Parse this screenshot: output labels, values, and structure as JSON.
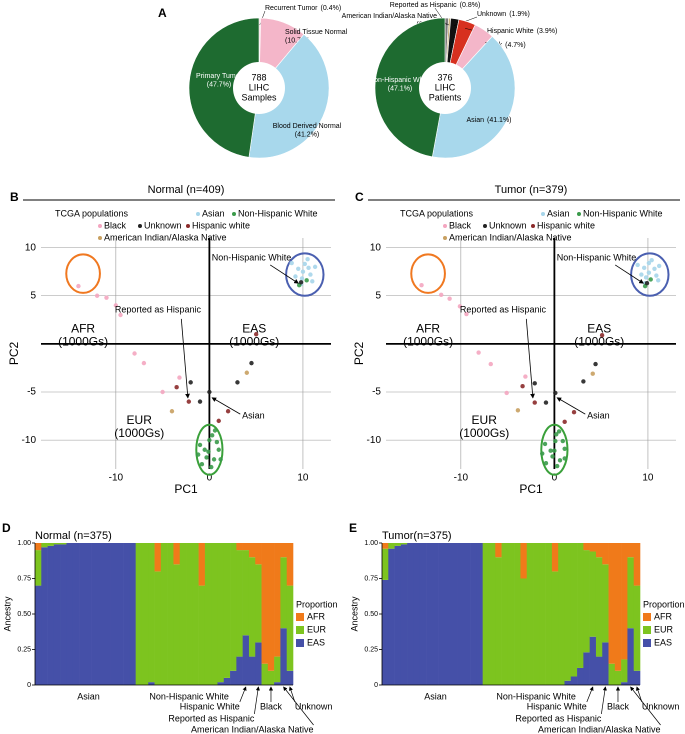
{
  "chart_data": [
    {
      "type": "pie",
      "panel": "A",
      "center_label": [
        "788",
        "LIHC",
        "Samples"
      ],
      "categories": [
        "Recurrent Tumor",
        "Solid Tissue Normal",
        "Blood Derived Normal",
        "Primary Tumor"
      ],
      "values": [
        0.4,
        10.7,
        41.2,
        47.7
      ],
      "value_labels": [
        "(0.4%)",
        "(10.7%)",
        "(41.2%)",
        "(47.7%)"
      ],
      "colors": [
        "#f7d9e0",
        "#f4b6c9",
        "#a8d8ec",
        "#1e6b30"
      ]
    },
    {
      "type": "pie",
      "center_label": [
        "376",
        "LIHC",
        "Patients"
      ],
      "categories": [
        "Reported as Hispanic",
        "American Indian/Alaska Native",
        "Unknown",
        "Hispanic White",
        "Black",
        "Asian",
        "Non-Hispanic White"
      ],
      "values": [
        0.8,
        0.5,
        1.9,
        3.9,
        4.7,
        41.1,
        47.1
      ],
      "value_labels": [
        "(0.8%)",
        "(0.5%)",
        "(1.9%)",
        "(3.9%)",
        "(4.7%)",
        "(41.1%)",
        "(47.1%)"
      ],
      "colors": [
        "#7a7a7a",
        "#c9b27c",
        "#111111",
        "#d7301f",
        "#f4b6c9",
        "#a8d8ec",
        "#1e6b30"
      ]
    },
    {
      "type": "scatter",
      "panel": "B",
      "title": "Normal (n=409)",
      "legend_title": "TCGA populations",
      "xlabel": "PC1",
      "ylabel": "PC2",
      "xlim": [
        -18,
        13
      ],
      "ylim": [
        -13,
        11
      ],
      "xticks": [
        -10,
        0,
        10
      ],
      "yticks": [
        -10,
        -5,
        5,
        10
      ],
      "grid": true,
      "series": [
        {
          "name": "Asian",
          "color": "#a6d5ea",
          "x": [
            9.5,
            10.2,
            10.8,
            11,
            9.8,
            10.5,
            9.2,
            11.3,
            10,
            8.8,
            10.6,
            9.9
          ],
          "values": [
            7.8,
            8.3,
            7.2,
            6.5,
            6.2,
            8.8,
            7,
            8,
            7.5,
            8.4,
            7.9,
            6.8
          ]
        },
        {
          "name": "Non-Hispanic White",
          "color": "#3a9a4a",
          "x": [
            0,
            -0.5,
            0.5,
            -0.8,
            0.3,
            1,
            -1,
            0.2,
            -0.3,
            0.8,
            1.2,
            -1.2,
            0.6,
            -0.1,
            9.6,
            10.4
          ],
          "values": [
            -10,
            -11,
            -12,
            -12.5,
            -9.5,
            -11,
            -10.5,
            -12.8,
            -11.8,
            -10.2,
            -12,
            -11.5,
            -9,
            -11.2,
            6.1,
            6.6
          ]
        },
        {
          "name": "Black",
          "color": "#f4a6c0",
          "x": [
            -14,
            -12,
            -11,
            -10,
            -9.5,
            -8,
            -7,
            -5,
            -3.2
          ],
          "values": [
            6,
            5,
            4.8,
            4,
            3,
            -1,
            -2,
            -5,
            -3.5
          ]
        },
        {
          "name": "Unknown",
          "color": "#222222",
          "x": [
            -2,
            0,
            3,
            4.5,
            -1,
            9.8
          ],
          "values": [
            -4,
            -5,
            -4,
            -2,
            -6,
            6.4
          ]
        },
        {
          "name": "Hispanic white",
          "color": "#8b2a2a",
          "x": [
            -2.2,
            1,
            5,
            2,
            -3.5
          ],
          "values": [
            -6,
            -8,
            1,
            -7,
            -4.5
          ]
        },
        {
          "name": "American Indian/Alaska Native",
          "color": "#c8a060",
          "x": [
            4,
            -4
          ],
          "values": [
            -3,
            -7
          ]
        }
      ],
      "clusters": [
        {
          "name": "AFR",
          "sublabel": "(1000Gs)",
          "color": "#f07820",
          "cx": -13.5,
          "cy": 7.3,
          "rx": 1.8,
          "ry": 2
        },
        {
          "name": "EAS",
          "sublabel": "(1000Gs)",
          "color": "#4a5fb0",
          "cx": 10.2,
          "cy": 7.2,
          "rx": 2,
          "ry": 2.2
        },
        {
          "name": "EUR",
          "sublabel": "(1000Gs)",
          "color": "#3aa03a",
          "cx": 0,
          "cy": -11,
          "rx": 1.4,
          "ry": 2.6
        }
      ],
      "annotations": [
        "Non-Hispanic White",
        "Reported as Hispanic",
        "Asian"
      ]
    },
    {
      "type": "scatter",
      "panel": "C",
      "title": "Tumor (n=379)",
      "legend_title": "TCGA populations",
      "xlabel": "PC1",
      "ylabel": "PC2",
      "xlim": [
        -18,
        13
      ],
      "ylim": [
        -13,
        11
      ],
      "xticks": [
        -10,
        0,
        10
      ],
      "yticks": [
        -10,
        -5,
        5,
        10
      ],
      "grid": true,
      "series": [
        {
          "name": "Asian",
          "color": "#a6d5ea",
          "x": [
            9.6,
            10.1,
            10.9,
            11.1,
            9.7,
            10.4,
            9.3,
            11.2,
            10.1,
            8.9,
            10.7,
            9.8
          ],
          "values": [
            7.9,
            8.4,
            7.1,
            6.6,
            6.3,
            8.7,
            7.2,
            8.1,
            7.4,
            8.2,
            7.8,
            6.9
          ]
        },
        {
          "name": "Non-Hispanic White",
          "color": "#3a9a4a",
          "x": [
            0.1,
            -0.4,
            0.6,
            -0.9,
            0.2,
            1.1,
            -1,
            0.3,
            -0.2,
            0.9,
            1.1,
            -1.3,
            0.5,
            0,
            9.7,
            10.3
          ],
          "values": [
            -10.1,
            -11.1,
            -12.1,
            -12.4,
            -9.4,
            -10.9,
            -10.4,
            -12.7,
            -11.7,
            -10.1,
            -11.9,
            -11.4,
            -9.1,
            -11.1,
            6,
            6.7
          ]
        },
        {
          "name": "Black",
          "color": "#f4a6c0",
          "x": [
            -14.2,
            -12.1,
            -11.2,
            -10.1,
            -9.4,
            -8.1,
            -6.8,
            -5.1,
            -3.1
          ],
          "values": [
            6.1,
            5.1,
            4.7,
            3.9,
            3.1,
            -0.9,
            -2.1,
            -5.1,
            -3.4
          ]
        },
        {
          "name": "Unknown",
          "color": "#222222",
          "x": [
            -2.1,
            0.1,
            3.1,
            4.4,
            -0.9,
            9.9
          ],
          "values": [
            -4.1,
            -5.1,
            -3.9,
            -2.1,
            -6.1,
            6.3
          ]
        },
        {
          "name": "Hispanic white",
          "color": "#8b2a2a",
          "x": [
            -2.1,
            1.1,
            5.1,
            2.1,
            -3.4
          ],
          "values": [
            -6.1,
            -8.1,
            0.9,
            -7.1,
            -4.4
          ]
        },
        {
          "name": "American Indian/Alaska Native",
          "color": "#c8a060",
          "x": [
            4.1,
            -3.9
          ],
          "values": [
            -3.1,
            -6.9
          ]
        }
      ],
      "clusters": [
        {
          "name": "AFR",
          "sublabel": "(1000Gs)",
          "color": "#f07820",
          "cx": -13.5,
          "cy": 7.3,
          "rx": 1.8,
          "ry": 2
        },
        {
          "name": "EAS",
          "sublabel": "(1000Gs)",
          "color": "#4a5fb0",
          "cx": 10.2,
          "cy": 7.2,
          "rx": 2,
          "ry": 2.2
        },
        {
          "name": "EUR",
          "sublabel": "(1000Gs)",
          "color": "#3aa03a",
          "cx": 0,
          "cy": -11,
          "rx": 1.4,
          "ry": 2.6
        }
      ],
      "annotations": [
        "Non-Hispanic White",
        "Reported as Hispanic",
        "Asian"
      ]
    },
    {
      "type": "bar",
      "stacked": true,
      "panel": "D",
      "title": "Normal (n=375)",
      "ylabel": "Ancestry",
      "legend_title": "Proportion",
      "ylim": [
        0,
        1
      ],
      "yticks": [
        0,
        0.25,
        {
          "value": 0.5,
          "label": "0.50"
        },
        0.75,
        {
          "value": 1,
          "label": "1.00"
        }
      ],
      "categories": [
        null,
        null,
        null,
        null,
        null,
        null,
        null,
        null,
        "Asian",
        null,
        null,
        null,
        null,
        null,
        null,
        null,
        null,
        null,
        null,
        null,
        null,
        null,
        null,
        null,
        "Non-Hispanic White",
        null,
        null,
        null,
        null,
        null,
        null,
        null,
        null,
        "Hispanic White",
        null,
        "Reported as Hispanic",
        null,
        "Black",
        null,
        "American Indian/Alaska Native",
        "Unknown"
      ],
      "series": [
        {
          "name": "AFR",
          "color": "#f07a1a",
          "values": [
            0.05,
            0,
            0,
            0,
            0,
            0,
            0,
            0,
            0,
            0,
            0,
            0,
            0,
            0,
            0,
            0,
            0,
            0,
            0,
            0.2,
            0,
            0,
            0.15,
            0,
            0,
            0,
            0.3,
            0,
            0,
            0,
            0,
            0,
            0.05,
            0.05,
            0.1,
            0.15,
            0.85,
            0.9,
            0.8,
            0.1,
            0.3
          ]
        },
        {
          "name": "EUR",
          "color": "#7dc41f",
          "values": [
            0.25,
            0.03,
            0.02,
            0.01,
            0.01,
            0,
            0,
            0,
            0,
            0,
            0,
            0,
            0,
            0,
            0,
            0,
            1,
            1,
            0.98,
            0.8,
            1,
            1,
            0.85,
            1,
            1,
            1,
            0.7,
            1,
            1,
            0.98,
            0.95,
            0.9,
            0.75,
            0.6,
            0.7,
            0.55,
            0.15,
            0.1,
            0.18,
            0.5,
            0.6
          ]
        },
        {
          "name": "EAS",
          "color": "#4550a8",
          "values": [
            0.7,
            0.97,
            0.98,
            0.99,
            0.99,
            1,
            1,
            1,
            1,
            1,
            1,
            1,
            1,
            1,
            1,
            1,
            0,
            0,
            0.02,
            0,
            0,
            0,
            0,
            0,
            0,
            0,
            0,
            0,
            0,
            0.02,
            0.05,
            0.1,
            0.2,
            0.35,
            0.2,
            0.3,
            0,
            0,
            0.02,
            0.4,
            0.1
          ]
        }
      ]
    },
    {
      "type": "bar",
      "stacked": true,
      "panel": "E",
      "title": "Tumor(n=375)",
      "ylabel": "Ancestry",
      "legend_title": "Proportion",
      "ylim": [
        0,
        1
      ],
      "yticks": [
        0,
        0.25,
        {
          "value": 0.5,
          "label": "0.50"
        },
        0.75,
        {
          "value": 1,
          "label": "1.00"
        }
      ],
      "categories": [
        null,
        null,
        null,
        null,
        null,
        null,
        null,
        null,
        "Asian",
        null,
        null,
        null,
        null,
        null,
        null,
        null,
        null,
        null,
        null,
        null,
        null,
        null,
        null,
        null,
        "Non-Hispanic White",
        null,
        null,
        null,
        null,
        null,
        null,
        null,
        null,
        "Hispanic White",
        null,
        "Reported as Hispanic",
        null,
        "Black",
        null,
        "American Indian/Alaska Native",
        "Unknown"
      ],
      "series": [
        {
          "name": "AFR",
          "color": "#f07a1a",
          "values": [
            0.04,
            0,
            0,
            0,
            0,
            0,
            0,
            0,
            0,
            0,
            0,
            0,
            0,
            0,
            0,
            0,
            0,
            0,
            0.1,
            0,
            0,
            0,
            0.25,
            0,
            0,
            0,
            0,
            0.2,
            0,
            0,
            0,
            0,
            0.05,
            0.06,
            0.1,
            0.15,
            0.85,
            0.9,
            0.82,
            0.1,
            0.3
          ]
        },
        {
          "name": "EUR",
          "color": "#7dc41f",
          "values": [
            0.22,
            0.04,
            0.02,
            0.01,
            0,
            0,
            0,
            0,
            0,
            0,
            0,
            0,
            0,
            0,
            0,
            0,
            1,
            1,
            0.9,
            1,
            1,
            1,
            0.75,
            1,
            1,
            1,
            1,
            0.8,
            1,
            0.97,
            0.94,
            0.88,
            0.72,
            0.6,
            0.7,
            0.55,
            0.15,
            0.1,
            0.16,
            0.5,
            0.6
          ]
        },
        {
          "name": "EAS",
          "color": "#4550a8",
          "values": [
            0.74,
            0.96,
            0.98,
            0.99,
            1,
            1,
            1,
            1,
            1,
            1,
            1,
            1,
            1,
            1,
            1,
            1,
            0,
            0,
            0,
            0,
            0,
            0,
            0,
            0,
            0,
            0,
            0,
            0,
            0,
            0.03,
            0.06,
            0.12,
            0.23,
            0.34,
            0.2,
            0.3,
            0,
            0,
            0.02,
            0.4,
            0.1
          ]
        }
      ]
    }
  ]
}
